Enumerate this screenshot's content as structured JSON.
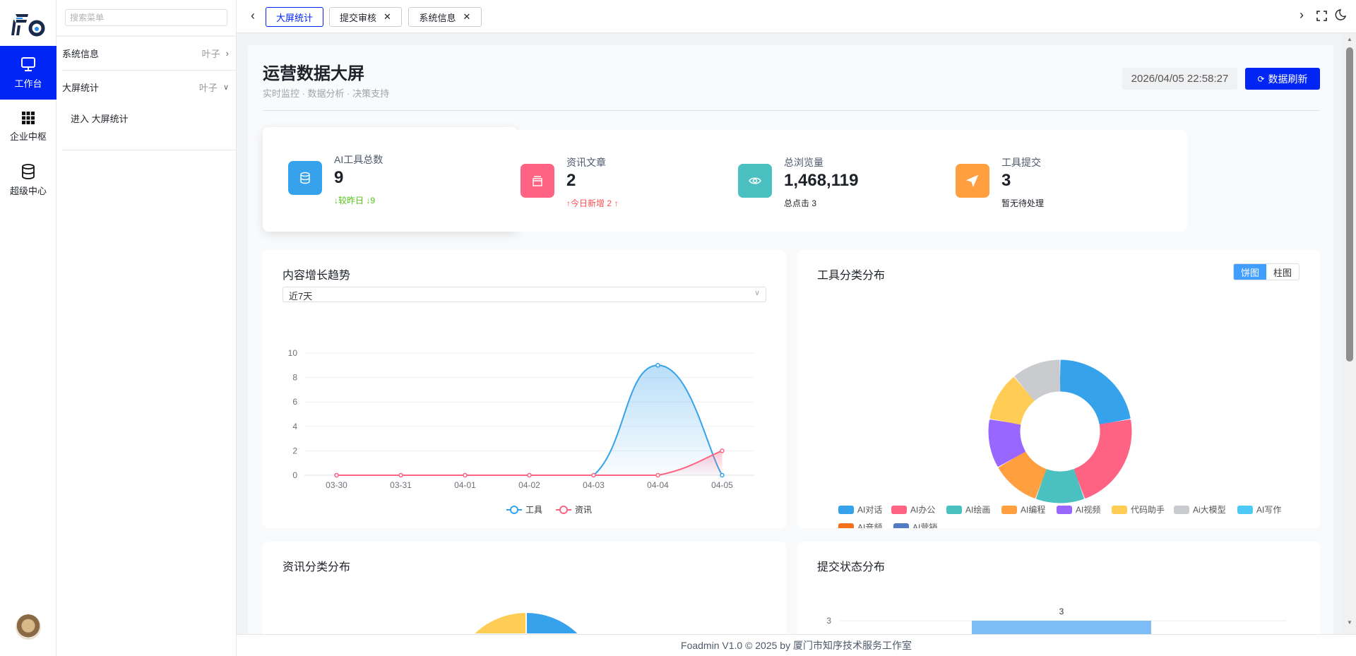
{
  "rail": {
    "items": [
      {
        "label": "工作台",
        "icon": "monitor-icon",
        "active": true
      },
      {
        "label": "企业中枢",
        "icon": "grid-icon"
      },
      {
        "label": "超级中心",
        "icon": "database-icon"
      }
    ]
  },
  "submenu": {
    "search_placeholder": "搜索菜单",
    "items": [
      {
        "label": "系统信息",
        "tag": "叶子"
      },
      {
        "label": "大屏统计",
        "tag": "叶子",
        "children": [
          "进入 大屏统计"
        ]
      }
    ]
  },
  "tabs": [
    {
      "label": "大屏统计",
      "active": true
    },
    {
      "label": "提交审核"
    },
    {
      "label": "系统信息"
    }
  ],
  "header": {
    "title": "运营数据大屏",
    "subtitle": "实时监控 · 数据分析 · 决策支持",
    "datetime": "2026/04/05 22:58:27",
    "refresh_label": "数据刷新"
  },
  "stats": [
    {
      "label": "AI工具总数",
      "value": "9",
      "sub": "↓较昨日 ↓9",
      "sub_color": "#52c41a",
      "color": "#36a2eb",
      "icon": "database-icon"
    },
    {
      "label": "资讯文章",
      "value": "2",
      "sub": "↑今日新增 2 ↑",
      "sub_color": "#ff4d4f",
      "color": "#ff6384",
      "icon": "article-icon"
    },
    {
      "label": "总浏览量",
      "value": "1,468,119",
      "sub": "总点击 3",
      "sub_color": "#1d2129",
      "color": "#4bc0c0",
      "icon": "eye-icon"
    },
    {
      "label": "工具提交",
      "value": "3",
      "sub": "暂无待处理",
      "sub_color": "#1d2129",
      "color": "#ff9f40",
      "icon": "send-icon"
    }
  ],
  "trend": {
    "title": "内容增长趋势",
    "range": "近7天"
  },
  "tool_dist": {
    "title": "工具分类分布",
    "toggle": [
      "饼图",
      "柱图"
    ]
  },
  "news_dist": {
    "title": "资讯分类分布"
  },
  "submit_dist": {
    "title": "提交状态分布"
  },
  "footer": "Foadmin V1.0 © 2025 by 厦门市知序技术服务工作室",
  "chart_data": [
    {
      "type": "line",
      "categories": [
        "03-30",
        "03-31",
        "04-01",
        "04-02",
        "04-03",
        "04-04",
        "04-05"
      ],
      "ylim": [
        0,
        10
      ],
      "yticks": [
        0,
        2,
        4,
        6,
        8,
        10
      ],
      "grid": true,
      "legend": "bottom",
      "series": [
        {
          "name": "工具",
          "color": "#36a2eb",
          "values": [
            0,
            0,
            0,
            0,
            0,
            9,
            0
          ]
        },
        {
          "name": "资讯",
          "color": "#ff6384",
          "values": [
            0,
            0,
            0,
            0,
            0,
            0,
            2
          ]
        }
      ]
    },
    {
      "type": "pie",
      "donut": true,
      "legend": "bottom",
      "categories": [
        "AI对话",
        "AI办公",
        "AI绘画",
        "AI编程",
        "AI视频",
        "代码助手",
        "Ai大模型",
        "AI写作",
        "AI音频",
        "AI营销"
      ],
      "colors": [
        "#36a2eb",
        "#ff6384",
        "#4bc0c0",
        "#ff9f40",
        "#9966ff",
        "#ffcd56",
        "#c9cbcf",
        "#4dc9f6",
        "#f67019",
        "#537bc4"
      ],
      "values": [
        2,
        2,
        1,
        1,
        1,
        1,
        1,
        0,
        0,
        0
      ]
    },
    {
      "type": "pie",
      "colors": [
        "#36a2eb",
        "#ffcd56"
      ],
      "values": [
        1,
        1
      ]
    },
    {
      "type": "bar",
      "yticks": [
        3
      ],
      "values": [
        3
      ],
      "data_labels": [
        "3"
      ],
      "color": "#7dbcf4"
    }
  ]
}
